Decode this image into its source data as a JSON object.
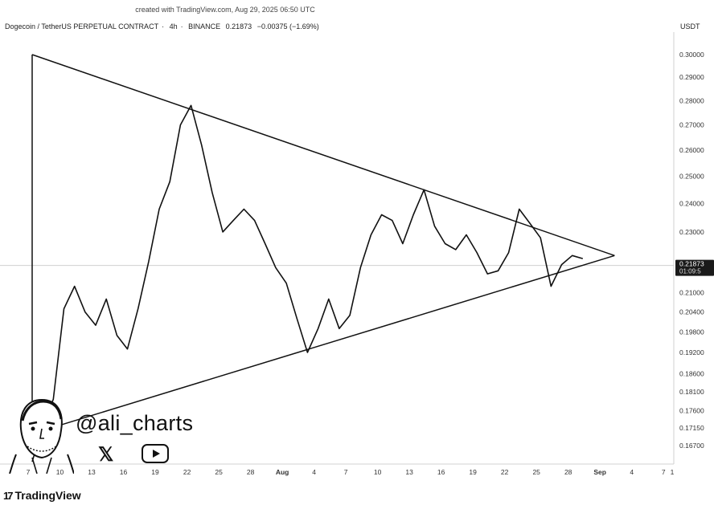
{
  "credit": "created with TradingView.com, Aug 29, 2025 06:50 UTC",
  "symbol": {
    "name": "Dogecoin / TetherUS PERPETUAL CONTRACT",
    "interval": "4h",
    "exchange": "BINANCE",
    "last": "0.21873",
    "change": "−0.00375 (−1.69%)"
  },
  "currency": "USDT",
  "handle": "@ali_charts",
  "brand": "TradingView",
  "price_badge": {
    "price": "0.21873",
    "countdown": "01:09:5"
  },
  "icons": [
    "x-logo-icon",
    "youtube-icon",
    "tradingview-logo-icon",
    "avatar-caricature"
  ],
  "colors": {
    "line": "#111111",
    "badge": "#1a1a1a",
    "background": "#ffffff"
  },
  "chart_data": {
    "type": "line",
    "title": "",
    "xlabel": "",
    "ylabel": "",
    "y_scale": "log",
    "grid": false,
    "y_ticks": [
      "0.30000",
      "0.29000",
      "0.28000",
      "0.27000",
      "0.26000",
      "0.25000",
      "0.24000",
      "0.23000",
      "0.21000",
      "0.20400",
      "0.19800",
      "0.19200",
      "0.18600",
      "0.18100",
      "0.17600",
      "0.17150",
      "0.16700"
    ],
    "x_ticks": [
      "7",
      "10",
      "13",
      "16",
      "19",
      "22",
      "25",
      "28",
      "Aug",
      "4",
      "7",
      "10",
      "13",
      "16",
      "19",
      "22",
      "25",
      "28",
      "Sep",
      "4",
      "7",
      "1"
    ],
    "x_range": [
      "2025-07-07",
      "2025-09-01"
    ],
    "ylim": [
      0.158,
      0.307
    ],
    "series": [
      {
        "points": [
          [
            "2025-07-07",
            0.163
          ],
          [
            "2025-07-08",
            0.172
          ],
          [
            "2025-07-09",
            0.179
          ],
          [
            "2025-07-10",
            0.205
          ],
          [
            "2025-07-11",
            0.212
          ],
          [
            "2025-07-12",
            0.204
          ],
          [
            "2025-07-13",
            0.2
          ],
          [
            "2025-07-14",
            0.208
          ],
          [
            "2025-07-15",
            0.197
          ],
          [
            "2025-07-16",
            0.193
          ],
          [
            "2025-07-17",
            0.205
          ],
          [
            "2025-07-18",
            0.22
          ],
          [
            "2025-07-19",
            0.238
          ],
          [
            "2025-07-20",
            0.248
          ],
          [
            "2025-07-21",
            0.27
          ],
          [
            "2025-07-22",
            0.278
          ],
          [
            "2025-07-23",
            0.262
          ],
          [
            "2025-07-24",
            0.244
          ],
          [
            "2025-07-25",
            0.23
          ],
          [
            "2025-07-26",
            0.234
          ],
          [
            "2025-07-27",
            0.238
          ],
          [
            "2025-07-28",
            0.234
          ],
          [
            "2025-07-29",
            0.226
          ],
          [
            "2025-07-30",
            0.218
          ],
          [
            "2025-07-31",
            0.213
          ],
          [
            "2025-08-01",
            0.202
          ],
          [
            "2025-08-02",
            0.192
          ],
          [
            "2025-08-03",
            0.199
          ],
          [
            "2025-08-04",
            0.208
          ],
          [
            "2025-08-05",
            0.199
          ],
          [
            "2025-08-06",
            0.203
          ],
          [
            "2025-08-07",
            0.218
          ],
          [
            "2025-08-08",
            0.229
          ],
          [
            "2025-08-09",
            0.236
          ],
          [
            "2025-08-10",
            0.234
          ],
          [
            "2025-08-11",
            0.226
          ],
          [
            "2025-08-12",
            0.236
          ],
          [
            "2025-08-13",
            0.245
          ],
          [
            "2025-08-14",
            0.232
          ],
          [
            "2025-08-15",
            0.226
          ],
          [
            "2025-08-16",
            0.224
          ],
          [
            "2025-08-17",
            0.229
          ],
          [
            "2025-08-18",
            0.223
          ],
          [
            "2025-08-19",
            0.216
          ],
          [
            "2025-08-20",
            0.217
          ],
          [
            "2025-08-21",
            0.223
          ],
          [
            "2025-08-22",
            0.238
          ],
          [
            "2025-08-23",
            0.233
          ],
          [
            "2025-08-24",
            0.228
          ],
          [
            "2025-08-25",
            0.212
          ],
          [
            "2025-08-26",
            0.219
          ],
          [
            "2025-08-27",
            0.222
          ],
          [
            "2025-08-28",
            0.221
          ]
        ]
      }
    ],
    "annotations": [
      {
        "type": "trendline",
        "label": "upper triangle boundary",
        "from": [
          "2025-07-07",
          0.3
        ],
        "to": [
          "2025-08-31",
          0.222
        ]
      },
      {
        "type": "trendline",
        "label": "lower triangle boundary",
        "from": [
          "2025-07-07",
          0.17
        ],
        "to": [
          "2025-08-31",
          0.222
        ]
      },
      {
        "type": "vertical",
        "label": "triangle base",
        "at": "2025-07-07",
        "from": 0.17,
        "to": 0.3
      }
    ],
    "current_price": 0.21873
  }
}
